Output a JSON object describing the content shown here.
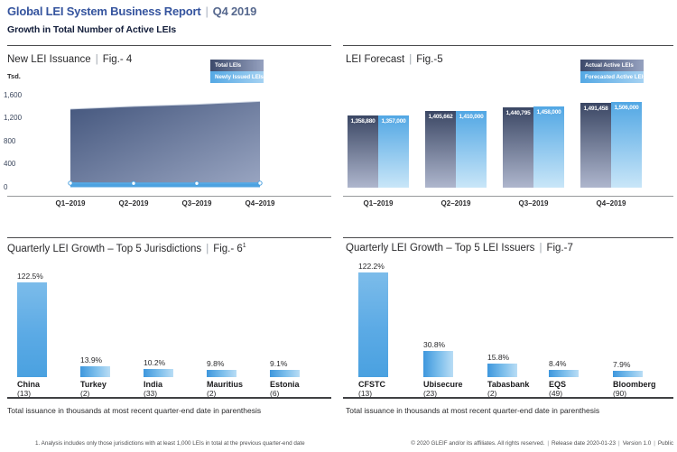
{
  "header": {
    "title": "Global LEI System Business Report",
    "pipe": "|",
    "period": "Q4 2019",
    "subtitle": "Growth in Total Number of Active LEIs"
  },
  "charts": {
    "fig4": {
      "name": "New LEI Issuance",
      "pipe": "|",
      "fig": "Fig.- 4",
      "unit": "Tsd.",
      "legend": [
        "Total LEIs",
        "Newly Issued LEIs"
      ],
      "yticks": [
        "1,600",
        "1,200",
        "800",
        "400",
        "0"
      ]
    },
    "fig5": {
      "name": "LEI Forecast",
      "pipe": "|",
      "fig": "Fig.-5",
      "legend": [
        "Actual Active LEIs",
        "Forecasted Active LEIs"
      ]
    },
    "fig6": {
      "name": "Quarterly LEI Growth – Top 5 Jurisdictions",
      "pipe": "|",
      "fig": "Fig.- 6",
      "fig_sup": "1",
      "note": "Total issuance in thousands at most recent quarter-end date in parenthesis"
    },
    "fig7": {
      "name": "Quarterly LEI Growth – Top 5 LEI Issuers",
      "pipe": "|",
      "fig": "Fig.-7",
      "note": "Total issuance in thousands at most recent quarter-end date in parenthesis"
    }
  },
  "chart_data": [
    {
      "id": "fig4",
      "type": "area",
      "title": "New LEI Issuance | Fig.- 4",
      "ylabel": "Tsd.",
      "ylim": [
        0,
        1600
      ],
      "yticks": [
        1600,
        1200,
        800,
        400,
        0
      ],
      "categories": [
        "Q1–2019",
        "Q2–2019",
        "Q3–2019",
        "Q4–2019"
      ],
      "series": [
        {
          "name": "Total LEIs",
          "values": [
            1358.9,
            1405.7,
            1440.8,
            1491.5
          ]
        },
        {
          "name": "Newly Issued LEIs",
          "values": [
            70,
            68,
            67,
            70
          ]
        }
      ],
      "legend_position": "top-right",
      "grid": false
    },
    {
      "id": "fig5",
      "type": "bar",
      "title": "LEI Forecast | Fig.-5",
      "categories": [
        "Q1–2019",
        "Q2–2019",
        "Q3–2019",
        "Q4–2019"
      ],
      "series": [
        {
          "name": "Actual Active LEIs",
          "values": [
            1358880,
            1405662,
            1440795,
            1491458
          ],
          "labels": [
            "1,358,880",
            "1,405,662",
            "1,440,795",
            "1,491,458"
          ]
        },
        {
          "name": "Forecasted Active LEIs",
          "values": [
            1357000,
            1410000,
            1458000,
            1506000
          ],
          "labels": [
            "1,357,000",
            "1,410,000",
            "1,458,000",
            "1,506,000"
          ]
        }
      ],
      "legend_position": "top-right",
      "grid": false
    },
    {
      "id": "fig6",
      "type": "bar",
      "title": "Quarterly LEI Growth – Top 5 Jurisdictions | Fig.- 6¹",
      "categories": [
        "China",
        "Turkey",
        "India",
        "Mauritius",
        "Estonia"
      ],
      "sublabels": [
        "(13)",
        "(2)",
        "(33)",
        "(2)",
        "(6)"
      ],
      "values": [
        122.5,
        13.9,
        10.2,
        9.8,
        9.1
      ],
      "labels": [
        "122.5%",
        "13.9%",
        "10.2%",
        "9.8%",
        "9.1%"
      ],
      "grid": false
    },
    {
      "id": "fig7",
      "type": "bar",
      "title": "Quarterly LEI Growth – Top 5 LEI Issuers | Fig.-7",
      "categories": [
        "CFSTC",
        "Ubisecure",
        "Tabasbank",
        "EQS",
        "Bloomberg"
      ],
      "sublabels": [
        "(13)",
        "(23)",
        "(2)",
        "(49)",
        "(90)"
      ],
      "values": [
        122.2,
        30.8,
        15.8,
        8.4,
        7.9
      ],
      "labels": [
        "122.2%",
        "30.8%",
        "15.8%",
        "8.4%",
        "7.9%"
      ],
      "grid": false
    }
  ],
  "footer": {
    "footnote": "1. Analysis includes only those jurisdictions with at least 1,000 LEIs in total at the previous quarter-end date",
    "rights": "© 2020 GLEIF and/or its affiliates. All rights reserved.",
    "pipe": "|",
    "release": "Release date 2020-01-23",
    "version": "Version 1.0",
    "classification": "Public"
  },
  "colors": {
    "accent_blue": "#4DA2E0",
    "series_dark": "#3D4A6B",
    "title_blue": "#35549E"
  }
}
